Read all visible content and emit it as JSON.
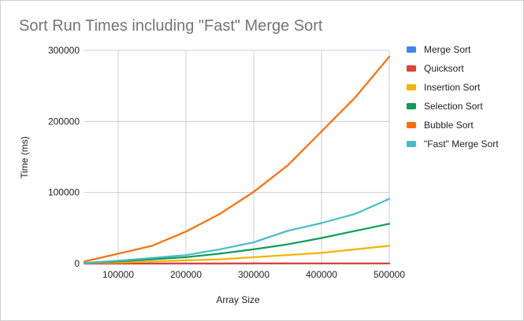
{
  "chart_data": {
    "type": "line",
    "title": "Sort Run Times including \"Fast\" Merge Sort",
    "xlabel": "Array Size",
    "ylabel": "Time (ms)",
    "x": [
      50000,
      100000,
      150000,
      200000,
      250000,
      300000,
      350000,
      400000,
      450000,
      500000
    ],
    "xlim": [
      50000,
      500000
    ],
    "ylim": [
      0,
      300000
    ],
    "x_ticks": [
      "100000",
      "200000",
      "300000",
      "400000",
      "500000"
    ],
    "x_tick_values": [
      100000,
      200000,
      300000,
      400000,
      500000
    ],
    "y_ticks": [
      "0",
      "100000",
      "200000",
      "300000"
    ],
    "y_tick_values": [
      0,
      100000,
      200000,
      300000
    ],
    "grid": true,
    "legend_position": "right",
    "series": [
      {
        "name": "Merge Sort",
        "color": "#4285f4",
        "values": [
          20,
          40,
          60,
          80,
          100,
          120,
          140,
          160,
          180,
          200
        ]
      },
      {
        "name": "Quicksort",
        "color": "#db4437",
        "values": [
          10,
          20,
          30,
          40,
          50,
          60,
          70,
          80,
          90,
          100
        ]
      },
      {
        "name": "Insertion Sort",
        "color": "#f4b400",
        "values": [
          500,
          1500,
          3000,
          4500,
          6000,
          9000,
          12000,
          15000,
          20000,
          25000
        ]
      },
      {
        "name": "Selection Sort",
        "color": "#0f9d58",
        "values": [
          800,
          3000,
          6000,
          9000,
          14000,
          20000,
          27000,
          36000,
          46000,
          56000
        ]
      },
      {
        "name": "Bubble Sort",
        "color": "#ff6d01",
        "values": [
          3000,
          14000,
          25000,
          45000,
          70000,
          101000,
          138000,
          186000,
          234000,
          291000
        ]
      },
      {
        "name": "\"Fast\" Merge Sort",
        "color": "#46bdc6",
        "values": [
          1000,
          4000,
          8000,
          12000,
          20000,
          30000,
          46000,
          57000,
          70000,
          91000
        ]
      }
    ]
  }
}
